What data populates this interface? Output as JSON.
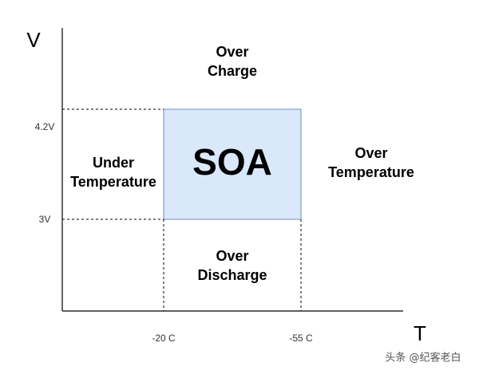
{
  "axes": {
    "y_label": "V",
    "x_label": "T",
    "y_ticks": [
      "4.2V",
      "3V"
    ],
    "x_ticks": [
      "-20 C",
      "-55 C"
    ]
  },
  "regions": {
    "soa": "SOA",
    "over_charge": [
      "Over",
      "Charge"
    ],
    "under_temperature": [
      "Under",
      "Temperature"
    ],
    "over_temperature": [
      "Over",
      "Temperature"
    ],
    "over_discharge": [
      "Over",
      "Discharge"
    ]
  },
  "watermark": "头条 @纪客老白"
}
